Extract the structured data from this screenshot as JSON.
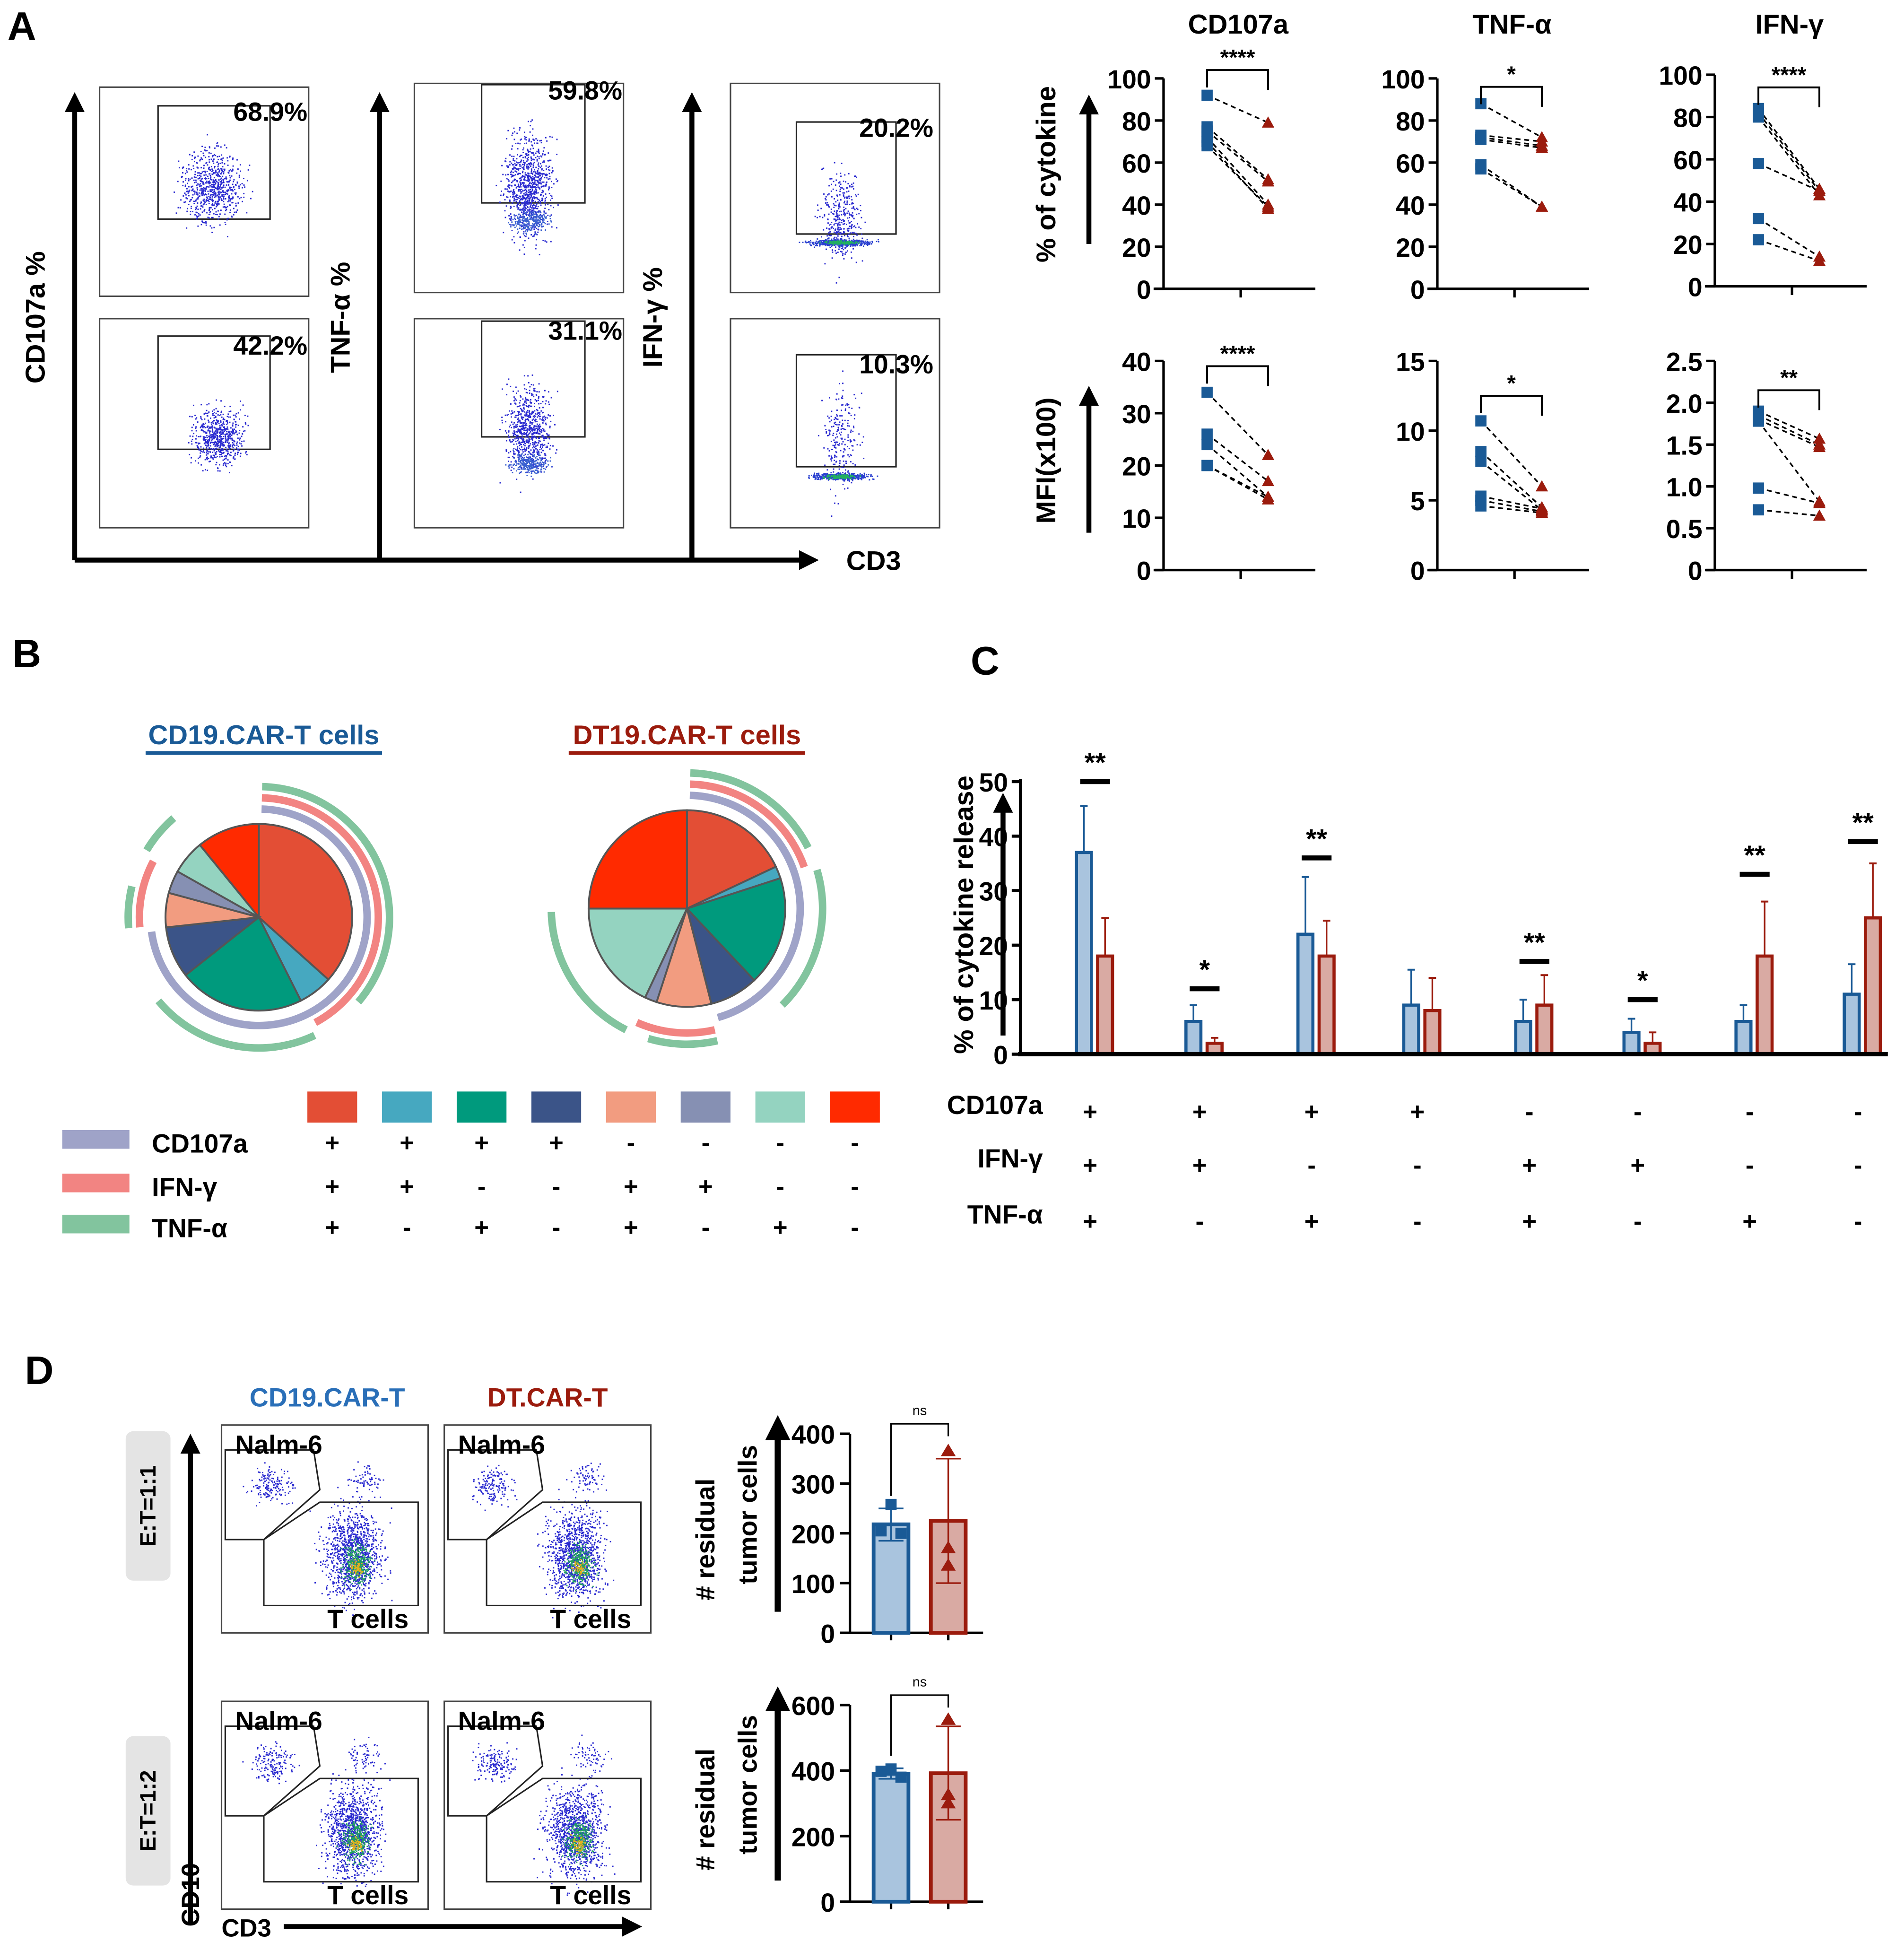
{
  "panel_labels": {
    "a": "A",
    "b": "B",
    "c": "C",
    "d": "D"
  },
  "panel_a": {
    "flow_y_labels": [
      "CD107a %",
      "TNF-α %",
      "IFN-γ %"
    ],
    "flow_x_label": "CD3",
    "gate_percentages": [
      [
        "68.9%",
        "42.2%"
      ],
      [
        "59.8%",
        "31.1%"
      ],
      [
        "20.2%",
        "10.3%"
      ]
    ],
    "row_ylabels": [
      "% of cytokine",
      "MFI(x100)"
    ]
  },
  "panel_b": {
    "titles": [
      "CD19.CAR-T cells",
      "DT19.CAR-T cells"
    ],
    "marker_legend": [
      {
        "label": "CD107a",
        "color": "#9fa3c8"
      },
      {
        "label": "IFN-γ",
        "color": "#f28482"
      },
      {
        "label": "TNF-α",
        "color": "#82c49e"
      }
    ],
    "category_colors": [
      "#e34e35",
      "#46a8c0",
      "#009a7d",
      "#3b5488",
      "#f29c80",
      "#8690b3",
      "#94d3c0",
      "#ff2a00"
    ],
    "signs": {
      "CD107a": [
        "+",
        "+",
        "+",
        "+",
        "-",
        "-",
        "-",
        "-"
      ],
      "IFN": [
        "+",
        "+",
        "-",
        "-",
        "+",
        "+",
        "-",
        "-"
      ],
      "TNF": [
        "+",
        "-",
        "+",
        "-",
        "+",
        "-",
        "+",
        "-"
      ]
    }
  },
  "panel_c": {
    "row_labels": [
      "CD107a",
      "IFN-γ",
      "TNF-α"
    ]
  },
  "panel_d": {
    "column_titles": [
      "CD19.CAR-T",
      "DT.CAR-T"
    ],
    "row_labels": [
      "E:T=1:1",
      "E:T=1:2"
    ],
    "gate_labels": {
      "tumor": "Nalm-6",
      "tcells": "T cells"
    },
    "x_label": "CD3",
    "y_label": "CD10"
  },
  "colors": {
    "cd19": "#1a5a96",
    "dt": "#9b1b0d",
    "cd19_fill": "#a9c4de",
    "dt_fill": "#d9aaa3"
  },
  "chart_data": [
    {
      "type": "scatter",
      "title": "CD107a",
      "ylabel": "% of cytokine",
      "ylim": [
        0,
        100
      ],
      "yticks": [
        "0",
        "20",
        "40",
        "60",
        "80",
        "100"
      ],
      "significance": "****",
      "bracket_at": 104,
      "pairs": [
        [
          92,
          79
        ],
        [
          77,
          52
        ],
        [
          75,
          51
        ],
        [
          72,
          40
        ],
        [
          70,
          38
        ],
        [
          68,
          39
        ]
      ]
    },
    {
      "type": "scatter",
      "title": "TNF-α",
      "ylim": [
        0,
        100
      ],
      "yticks": [
        "0",
        "20",
        "40",
        "60",
        "80",
        "100"
      ],
      "significance": "*",
      "bracket_at": 96,
      "pairs": [
        [
          88,
          72
        ],
        [
          73,
          70
        ],
        [
          72,
          68
        ],
        [
          71,
          67
        ],
        [
          59,
          39
        ],
        [
          57,
          39
        ]
      ]
    },
    {
      "type": "scatter",
      "title": "IFN-γ",
      "ylim": [
        0,
        100
      ],
      "yticks": [
        "0",
        "20",
        "40",
        "60",
        "80",
        "100"
      ],
      "significance": "****",
      "bracket_at": 94,
      "pairs": [
        [
          84,
          46
        ],
        [
          82,
          45
        ],
        [
          80,
          43
        ],
        [
          58,
          45
        ],
        [
          32,
          14
        ],
        [
          22,
          12
        ]
      ]
    },
    {
      "type": "scatter",
      "ylabel": "MFI(x100)",
      "ylim": [
        0,
        40
      ],
      "yticks": [
        "0",
        "10",
        "20",
        "30",
        "40"
      ],
      "significance": "****",
      "bracket_at": 39,
      "pairs": [
        [
          34,
          22
        ],
        [
          26,
          17
        ],
        [
          24,
          14
        ],
        [
          20,
          14
        ],
        [
          20,
          13.5
        ]
      ]
    },
    {
      "type": "scatter",
      "ylim": [
        0,
        15
      ],
      "yticks": [
        "0",
        "5",
        "10",
        "15"
      ],
      "significance": "*",
      "bracket_at": 12.5,
      "pairs": [
        [
          10.7,
          6
        ],
        [
          8.5,
          4.5
        ],
        [
          7.8,
          4.3
        ],
        [
          5.3,
          4.4
        ],
        [
          5,
          4.2
        ],
        [
          4.6,
          4.1
        ]
      ]
    },
    {
      "type": "scatter",
      "ylim": [
        0,
        2.5
      ],
      "yticks": [
        "0",
        "0.5",
        "1.0",
        "1.5",
        "2.0",
        "2.5"
      ],
      "significance": "**",
      "bracket_at": 2.15,
      "pairs": [
        [
          1.9,
          1.57
        ],
        [
          1.85,
          1.5
        ],
        [
          1.8,
          1.47
        ],
        [
          1.78,
          0.82
        ],
        [
          0.98,
          0.8
        ],
        [
          0.72,
          0.65
        ]
      ]
    },
    {
      "type": "pie",
      "title": "CD19.CAR-T cells",
      "values": [
        37,
        6,
        22,
        9,
        6,
        4,
        6,
        11
      ]
    },
    {
      "type": "pie",
      "title": "DT19.CAR-T cells",
      "values": [
        18,
        2,
        18,
        8,
        9,
        2,
        18,
        25
      ]
    },
    {
      "type": "bar",
      "ylabel": "% of cytokine release",
      "ylim": [
        0,
        50
      ],
      "yticks": [
        "0",
        "10",
        "20",
        "30",
        "40",
        "50"
      ],
      "series": [
        {
          "name": "CD19.CAR-T",
          "values": [
            37,
            6,
            22,
            9,
            6,
            4,
            6,
            11
          ],
          "err_upper": [
            45.5,
            9,
            32.5,
            15.5,
            10,
            6.5,
            9,
            16.5
          ]
        },
        {
          "name": "DT19.CAR-T",
          "values": [
            18,
            2,
            18,
            8,
            9,
            2,
            18,
            25
          ],
          "err_upper": [
            25,
            3,
            24.5,
            14,
            14.5,
            4,
            28,
            35
          ]
        }
      ],
      "significance": [
        "**",
        "*",
        "**",
        "",
        "**",
        "*",
        "**",
        "**"
      ],
      "sig_at": [
        50,
        12,
        36,
        null,
        17,
        10,
        33,
        39
      ]
    },
    {
      "type": "bar",
      "ylabel": [
        "# residual",
        "tumor cells"
      ],
      "ylim": [
        0,
        400
      ],
      "yticks": [
        "0",
        "100",
        "200",
        "300",
        "400"
      ],
      "significance": "ns",
      "series": [
        {
          "name": "CD19.CAR-T",
          "mean": 218,
          "err": [
            185,
            250
          ],
          "points": [
            258,
            205,
            200
          ]
        },
        {
          "name": "DT.CAR-T",
          "mean": 225,
          "err": [
            100,
            350
          ],
          "points": [
            365,
            170,
            135
          ]
        }
      ]
    },
    {
      "type": "bar",
      "ylabel": [
        "# residual",
        "tumor cells"
      ],
      "ylim": [
        0,
        600
      ],
      "yticks": [
        "0",
        "200",
        "400",
        "600"
      ],
      "significance": "ns",
      "series": [
        {
          "name": "CD19.CAR-T",
          "mean": 390,
          "err": [
            375,
            407
          ],
          "points": [
            405,
            398,
            380
          ]
        },
        {
          "name": "DT.CAR-T",
          "mean": 392,
          "err": [
            250,
            535
          ],
          "points": [
            555,
            325,
            300
          ]
        }
      ]
    }
  ]
}
